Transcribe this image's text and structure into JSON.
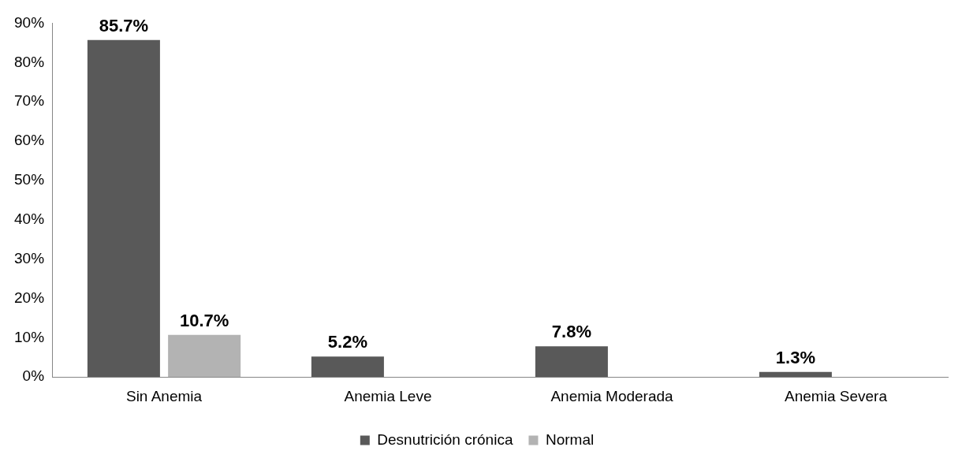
{
  "chart_data": {
    "type": "bar",
    "categories": [
      "Sin Anemia",
      "Anemia Leve",
      "Anemia Moderada",
      "Anemia Severa"
    ],
    "series": [
      {
        "name": "Desnutrición crónica",
        "color": "#595959",
        "values": [
          85.7,
          5.2,
          7.8,
          1.3
        ],
        "value_labels": [
          "85.7%",
          "5.2%",
          "7.8%",
          "1.3%"
        ]
      },
      {
        "name": "Normal",
        "color": "#b3b3b3",
        "values": [
          10.7,
          null,
          null,
          null
        ],
        "value_labels": [
          "10.7%",
          null,
          null,
          null
        ]
      }
    ],
    "ylim": [
      0,
      90
    ],
    "yticks": [
      {
        "value": 0,
        "label": "0%"
      },
      {
        "value": 10,
        "label": "10%"
      },
      {
        "value": 20,
        "label": "20%"
      },
      {
        "value": 30,
        "label": "30%"
      },
      {
        "value": 40,
        "label": "40%"
      },
      {
        "value": 50,
        "label": "50%"
      },
      {
        "value": 60,
        "label": "60%"
      },
      {
        "value": 70,
        "label": "70%"
      },
      {
        "value": 80,
        "label": "80%"
      },
      {
        "value": 90,
        "label": "90%"
      }
    ],
    "grid": false,
    "legend": "bottom"
  }
}
